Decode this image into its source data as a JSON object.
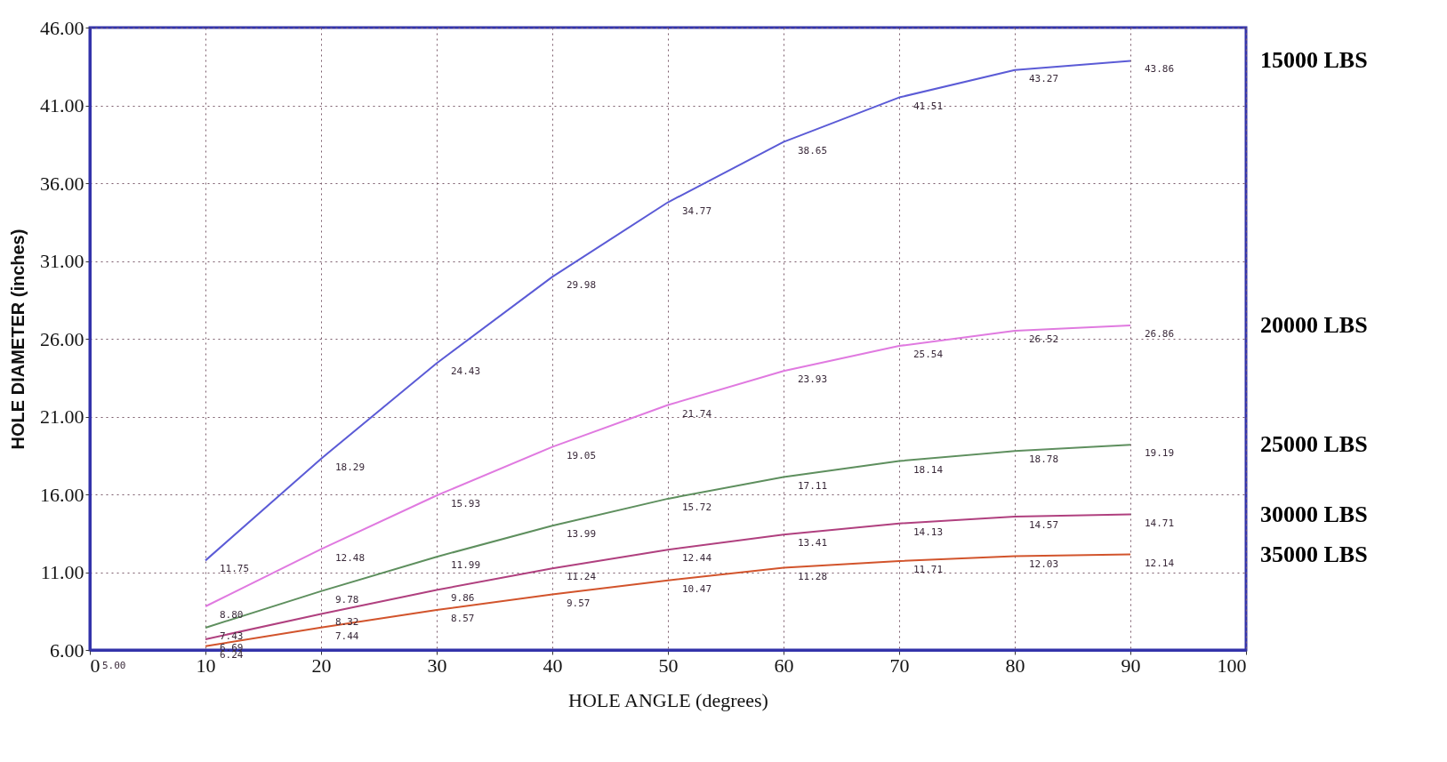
{
  "chart_data": {
    "type": "line",
    "xlabel": "HOLE ANGLE (degrees)",
    "ylabel": "HOLE DIAMETER (inches)",
    "x": [
      10,
      20,
      30,
      40,
      50,
      60,
      70,
      80,
      90
    ],
    "series": [
      {
        "name": "15000 LBS",
        "color": "#5b5bd6",
        "values": [
          11.75,
          18.29,
          24.43,
          29.98,
          34.77,
          38.65,
          41.51,
          43.27,
          43.86
        ],
        "value_labels": [
          "11.75",
          "18.29",
          "24.43",
          "29.98",
          "34.77",
          "38.65",
          "41.51",
          "43.27",
          "43.86"
        ]
      },
      {
        "name": "20000 LBS",
        "color": "#e07ae0",
        "values": [
          8.8,
          12.48,
          15.93,
          19.05,
          21.74,
          23.93,
          25.54,
          26.52,
          26.86
        ],
        "value_labels": [
          "8.80",
          "12.48",
          "15.93",
          "19.05",
          "21.74",
          "23.93",
          "25.54",
          "26.52",
          "26.86"
        ]
      },
      {
        "name": "25000 LBS",
        "color": "#5e8f5e",
        "values": [
          7.43,
          9.78,
          11.99,
          13.99,
          15.72,
          17.11,
          18.14,
          18.78,
          19.19
        ],
        "value_labels": [
          "7.43",
          "9.78",
          "11.99",
          "13.99",
          "15.72",
          "17.11",
          "18.14",
          "18.78",
          "19.19"
        ]
      },
      {
        "name": "30000 LBS",
        "color": "#b0407f",
        "values": [
          6.69,
          8.32,
          9.86,
          11.24,
          12.44,
          13.41,
          14.13,
          14.57,
          14.71
        ],
        "value_labels": [
          "6.69",
          "8.32",
          "9.86",
          "11.24",
          "12.44",
          "13.41",
          "14.13",
          "14.57",
          "14.71"
        ]
      },
      {
        "name": "35000 LBS",
        "color": "#d2542c",
        "values": [
          6.24,
          7.44,
          8.57,
          9.57,
          10.47,
          11.28,
          11.71,
          12.03,
          12.14
        ],
        "value_labels": [
          "6.24",
          "7.44",
          "8.57",
          "9.57",
          "10.47",
          "11.28",
          "11.71",
          "12.03",
          "12.14"
        ]
      }
    ],
    "xlim": [
      0,
      100
    ],
    "xticks": [
      0,
      10,
      20,
      30,
      40,
      50,
      60,
      70,
      80,
      90,
      100
    ],
    "ylim": [
      6,
      46
    ],
    "yticks": [
      {
        "value": 6,
        "label": "6.00"
      },
      {
        "value": 11,
        "label": "11.00"
      },
      {
        "value": 16,
        "label": "16.00"
      },
      {
        "value": 21,
        "label": "21.00"
      },
      {
        "value": 26,
        "label": "26.00"
      },
      {
        "value": 31,
        "label": "31.00"
      },
      {
        "value": 36,
        "label": "36.00"
      },
      {
        "value": 41,
        "label": "41.00"
      },
      {
        "value": 46,
        "label": "46.00"
      }
    ],
    "grid": true,
    "annotations": [
      "5.00"
    ]
  }
}
